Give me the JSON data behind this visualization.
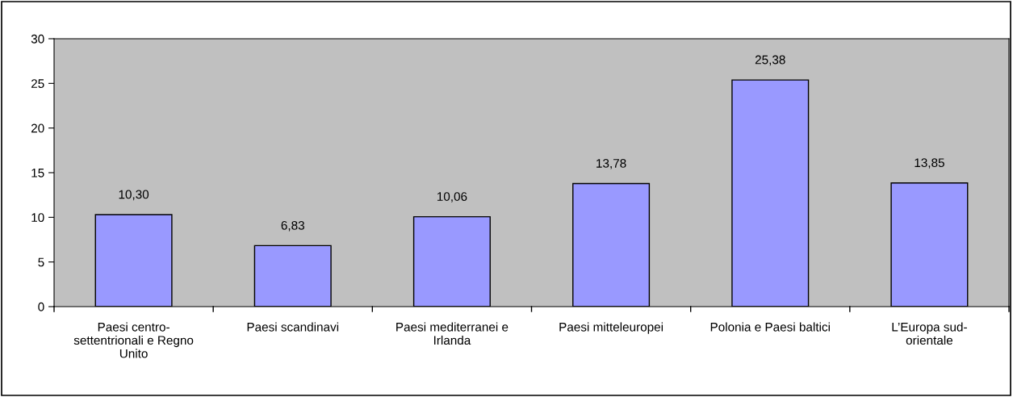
{
  "chart_data": {
    "type": "bar",
    "categories": [
      "Paesi centro-\nsettentrionali e Regno\nUnito",
      "Paesi scandinavi",
      "Paesi mediterranei e\nIrlanda",
      "Paesi mitteleuropei",
      "Polonia e Paesi baltici",
      "L’Europa sud-\norientale"
    ],
    "values": [
      10.3,
      6.83,
      10.06,
      13.78,
      25.38,
      13.85
    ],
    "value_labels": [
      "10,30",
      "6,83",
      "10,06",
      "13,78",
      "25,38",
      "13,85"
    ],
    "color": "#9999ff",
    "ylim": [
      0,
      30
    ],
    "yticks": [
      0,
      5,
      10,
      15,
      20,
      25,
      30
    ],
    "grid": false,
    "legend": false
  }
}
